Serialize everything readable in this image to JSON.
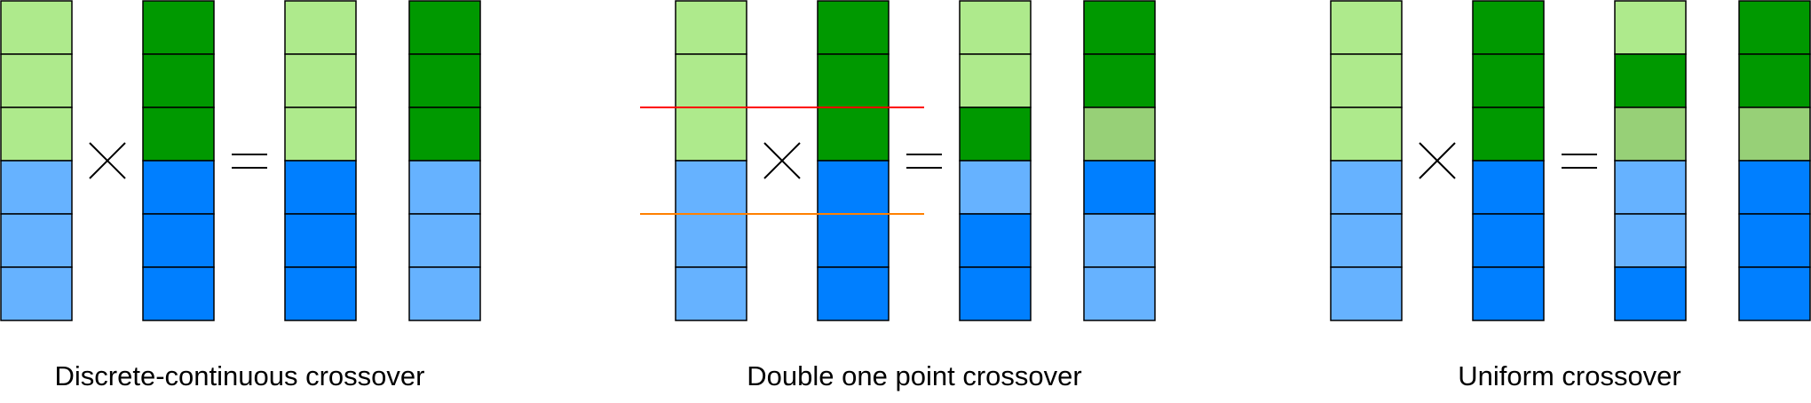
{
  "colors": {
    "light_green": "#AEEA8C",
    "dark_green": "#009900",
    "mid_green": "#97D077",
    "light_blue": "#66B2FF",
    "dark_blue": "#007FFF",
    "cut_line_upper": "#FF0000",
    "cut_line_lower": "#FF8000",
    "outline": "#000000"
  },
  "operators": {
    "cross": "multiply-sign",
    "equals": "equals-sign"
  },
  "panels": [
    {
      "caption": "Discrete-continuous crossover",
      "parents": [
        [
          "light_green",
          "light_green",
          "light_green",
          "light_blue",
          "light_blue",
          "light_blue"
        ],
        [
          "dark_green",
          "dark_green",
          "dark_green",
          "dark_blue",
          "dark_blue",
          "dark_blue"
        ]
      ],
      "offspring": [
        [
          "light_green",
          "light_green",
          "light_green",
          "dark_blue",
          "dark_blue",
          "dark_blue"
        ],
        [
          "dark_green",
          "dark_green",
          "dark_green",
          "light_blue",
          "light_blue",
          "light_blue"
        ]
      ],
      "cut_lines": []
    },
    {
      "caption": "Double one point crossover",
      "parents": [
        [
          "light_green",
          "light_green",
          "light_green",
          "light_blue",
          "light_blue",
          "light_blue"
        ],
        [
          "dark_green",
          "dark_green",
          "dark_green",
          "dark_blue",
          "dark_blue",
          "dark_blue"
        ]
      ],
      "offspring": [
        [
          "light_green",
          "light_green",
          "dark_green",
          "light_blue",
          "dark_blue",
          "dark_blue"
        ],
        [
          "dark_green",
          "dark_green",
          "mid_green",
          "dark_blue",
          "light_blue",
          "light_blue"
        ]
      ],
      "cut_lines": [
        {
          "after_gene": 2,
          "color": "cut_line_upper"
        },
        {
          "after_gene": 4,
          "color": "cut_line_lower"
        }
      ]
    },
    {
      "caption": "Uniform crossover",
      "parents": [
        [
          "light_green",
          "light_green",
          "light_green",
          "light_blue",
          "light_blue",
          "light_blue"
        ],
        [
          "dark_green",
          "dark_green",
          "dark_green",
          "dark_blue",
          "dark_blue",
          "dark_blue"
        ]
      ],
      "offspring": [
        [
          "light_green",
          "dark_green",
          "mid_green",
          "light_blue",
          "light_blue",
          "dark_blue"
        ],
        [
          "dark_green",
          "dark_green",
          "mid_green",
          "dark_blue",
          "dark_blue",
          "dark_blue"
        ]
      ],
      "cut_lines": []
    }
  ]
}
